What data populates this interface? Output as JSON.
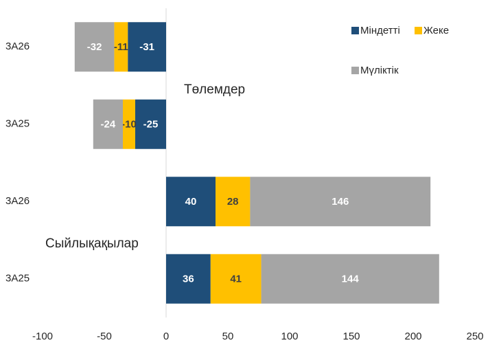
{
  "chart_data": {
    "type": "hbar_stacked",
    "categories": [
      "3A26",
      "3A25",
      "3A26",
      "3A25"
    ],
    "series": [
      {
        "name": "Міндетті",
        "color": "#1f4e79",
        "values": [
          -31,
          -25,
          40,
          36
        ]
      },
      {
        "name": "Жеке",
        "color": "#ffc000",
        "values": [
          -11,
          -10,
          28,
          41
        ]
      },
      {
        "name": "Мүліктік",
        "color": "#a5a5a5",
        "values": [
          -32,
          -24,
          146,
          144
        ]
      }
    ],
    "xlim": [
      -100,
      250
    ],
    "xticks": [
      -100,
      -50,
      0,
      50,
      100,
      150,
      200,
      250
    ],
    "annotations": [
      "Төлемдер",
      "Сыйлықақылар"
    ],
    "legend": "upper right",
    "grid": false
  }
}
